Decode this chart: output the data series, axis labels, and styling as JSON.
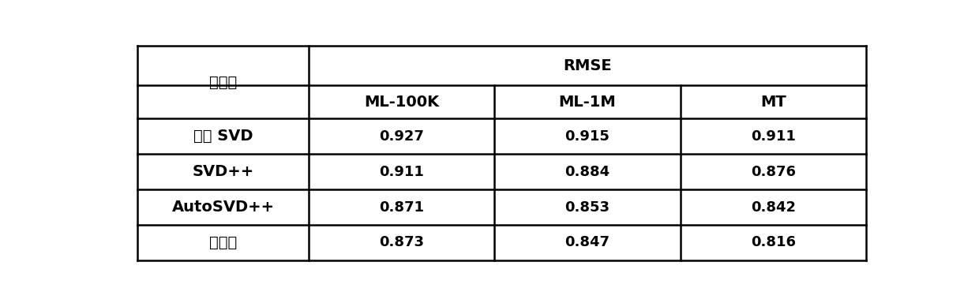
{
  "title_col": "数据集",
  "header_group": "RMSE",
  "sub_headers": [
    "ML-100K",
    "ML-1M",
    "MT"
  ],
  "row_labels": [
    "偏置 SVD",
    "SVD++",
    "AutoSVD++",
    "本方法"
  ],
  "data_values": [
    [
      "0.927",
      "0.915",
      "0.911"
    ],
    [
      "0.911",
      "0.884",
      "0.876"
    ],
    [
      "0.871",
      "0.853",
      "0.842"
    ],
    [
      "0.873",
      "0.847",
      "0.816"
    ]
  ],
  "bg_color": "#ffffff",
  "line_color": "#000000",
  "text_color": "#000000",
  "header_fontsize": 14,
  "cell_fontsize": 13,
  "figsize": [
    12.4,
    3.84
  ],
  "dpi": 100
}
